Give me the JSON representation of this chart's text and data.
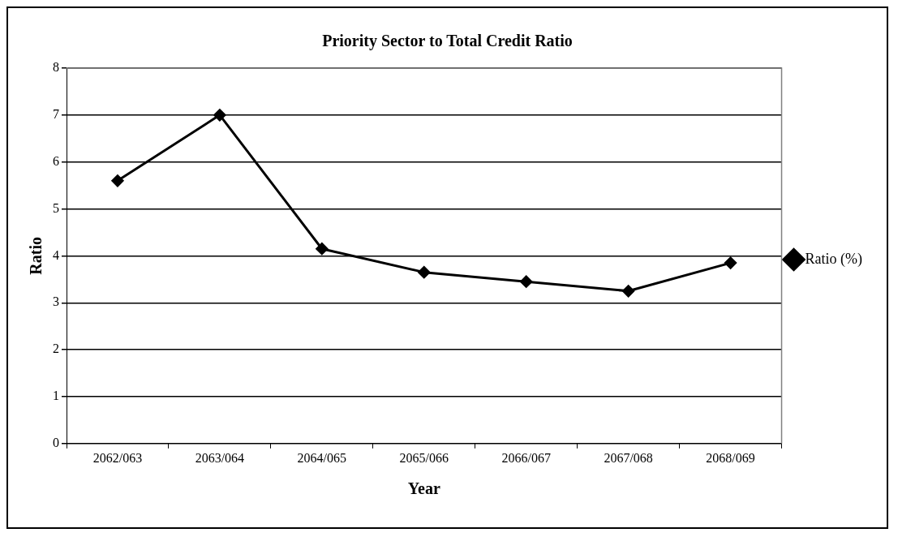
{
  "chart_data": {
    "type": "line",
    "title": "Priority Sector to Total Credit Ratio",
    "xlabel": "Year",
    "ylabel": "Ratio",
    "categories": [
      "2062/063",
      "2063/064",
      "2064/065",
      "2065/066",
      "2066/067",
      "2067/068",
      "2068/069"
    ],
    "series": [
      {
        "name": "Ratio (%)",
        "color": "#000000",
        "values": [
          5.6,
          7.0,
          4.15,
          3.65,
          3.45,
          3.25,
          3.85
        ]
      }
    ],
    "ylim": [
      0,
      8
    ],
    "yticks": [
      0,
      1,
      2,
      3,
      4,
      5,
      6,
      7,
      8
    ],
    "grid": "y",
    "legend": "right",
    "marker": "diamond",
    "line_style": "solid"
  }
}
